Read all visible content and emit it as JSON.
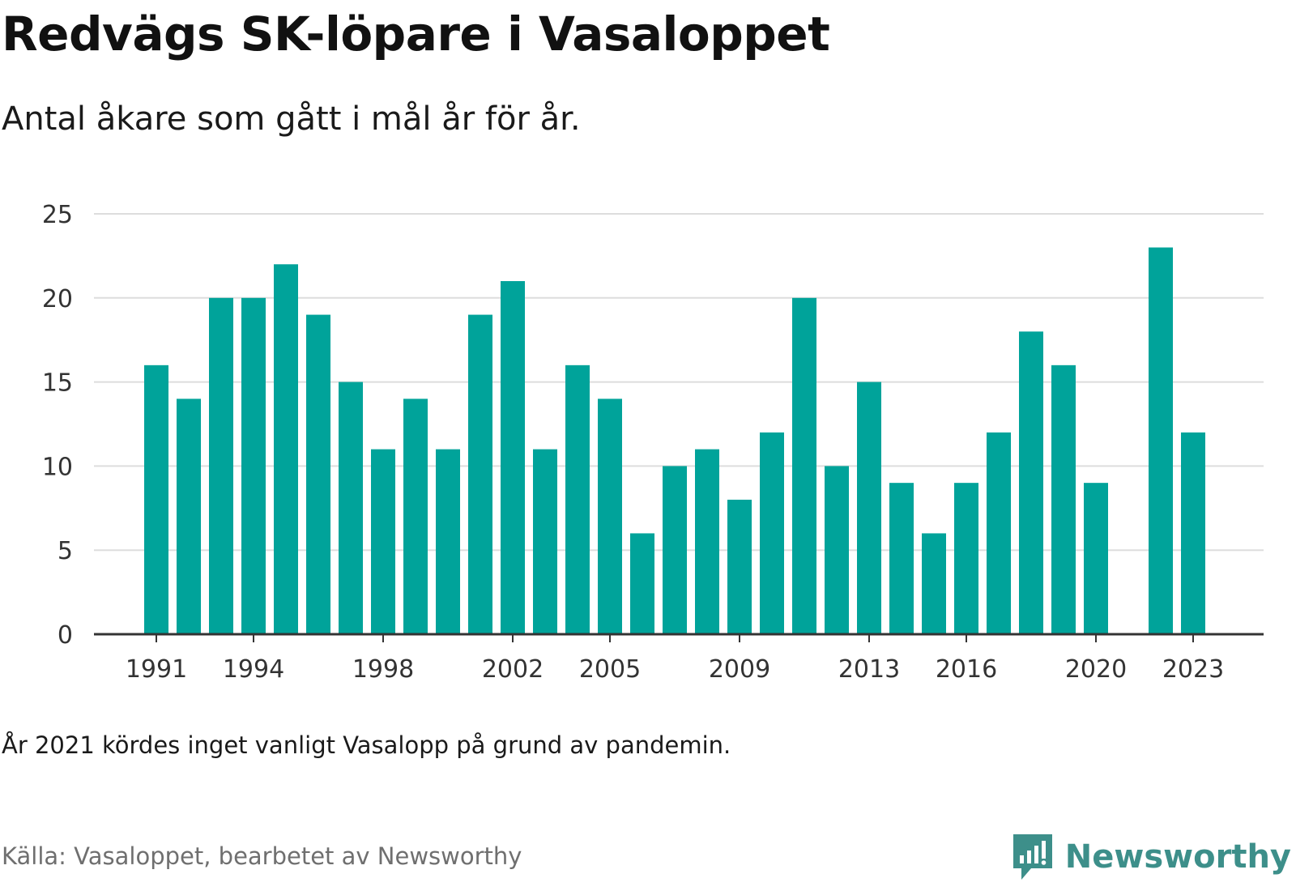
{
  "title": "Redvägs SK-löpare i Vasaloppet",
  "subtitle": "Antal åkare som gått i mål år för år.",
  "note": "År 2021 kördes inget vanligt Vasalopp på grund av pandemin.",
  "source": "Källa: Vasaloppet, bearbetet av Newsworthy",
  "brand": {
    "name": "Newsworthy",
    "icon": "newsworthy-logo-icon",
    "color": "#3d8f8a"
  },
  "chart_data": {
    "type": "bar",
    "title": "Redvägs SK-löpare i Vasaloppet",
    "subtitle": "Antal åkare som gått i mål år för år.",
    "xlabel": "",
    "ylabel": "",
    "ylim": [
      0,
      25
    ],
    "yticks": [
      0,
      5,
      10,
      15,
      20,
      25
    ],
    "xticks": [
      1991,
      1994,
      1998,
      2002,
      2005,
      2009,
      2013,
      2016,
      2020,
      2023
    ],
    "grid": true,
    "bar_color": "#00a39a",
    "categories": [
      1991,
      1992,
      1993,
      1994,
      1995,
      1996,
      1997,
      1998,
      1999,
      2000,
      2001,
      2002,
      2003,
      2004,
      2005,
      2006,
      2007,
      2008,
      2009,
      2010,
      2011,
      2012,
      2013,
      2014,
      2015,
      2016,
      2017,
      2018,
      2019,
      2020,
      2021,
      2022,
      2023
    ],
    "values": [
      16,
      14,
      20,
      20,
      22,
      19,
      15,
      11,
      14,
      11,
      19,
      21,
      11,
      16,
      14,
      6,
      10,
      11,
      8,
      12,
      20,
      10,
      15,
      9,
      6,
      9,
      12,
      18,
      16,
      9,
      null,
      23,
      12
    ]
  }
}
